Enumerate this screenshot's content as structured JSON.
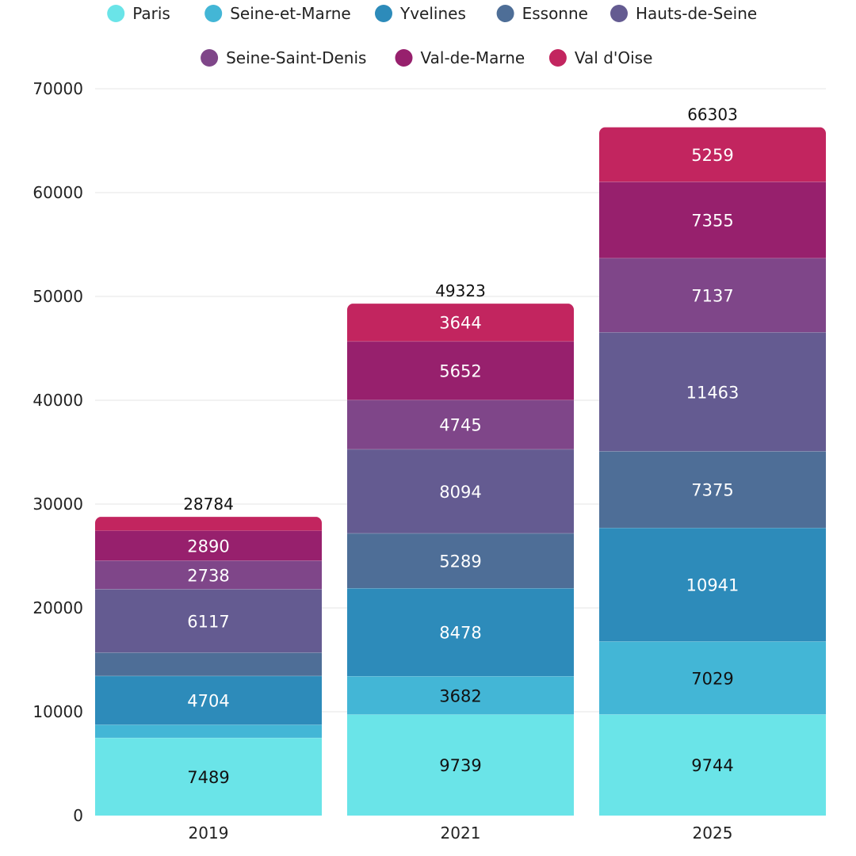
{
  "chart_data": {
    "type": "bar",
    "stacked": true,
    "title": "",
    "xlabel": "",
    "ylabel": "",
    "categories": [
      "2019",
      "2021",
      "2025"
    ],
    "ylim": [
      0,
      70000
    ],
    "yticks": [
      0,
      10000,
      20000,
      30000,
      40000,
      50000,
      60000,
      70000
    ],
    "grid": true,
    "legend_position": "top",
    "series": [
      {
        "name": "Paris",
        "color": "#6ae4e8",
        "values": [
          7489,
          9739,
          9744
        ],
        "labels": [
          "7489",
          "9739",
          "9744"
        ]
      },
      {
        "name": "Seine-et-Marne",
        "color": "#43b6d6",
        "values": [
          1262,
          3682,
          7029
        ],
        "labels": [
          "",
          "3682",
          "7029"
        ]
      },
      {
        "name": "Yvelines",
        "color": "#2d8bba",
        "values": [
          4704,
          8478,
          10941
        ],
        "labels": [
          "4704",
          "8478",
          "10941"
        ]
      },
      {
        "name": "Essonne",
        "color": "#4e6e97",
        "values": [
          2243,
          5289,
          7375
        ],
        "labels": [
          "",
          "5289",
          "7375"
        ]
      },
      {
        "name": "Hauts-de-Seine",
        "color": "#645b91",
        "values": [
          6117,
          8094,
          11463
        ],
        "labels": [
          "6117",
          "8094",
          "11463"
        ]
      },
      {
        "name": "Seine-Saint-Denis",
        "color": "#7f4689",
        "values": [
          2738,
          4745,
          7137
        ],
        "labels": [
          "2738",
          "4745",
          "7137"
        ]
      },
      {
        "name": "Val-de-Marne",
        "color": "#97206d",
        "values": [
          2890,
          5652,
          7355
        ],
        "labels": [
          "2890",
          "5652",
          "7355"
        ]
      },
      {
        "name": "Val d'Oise",
        "color": "#c2255f",
        "values": [
          1341,
          3644,
          5259
        ],
        "labels": [
          "",
          "3644",
          "5259"
        ]
      }
    ],
    "totals": [
      28784,
      49323,
      66303
    ]
  }
}
